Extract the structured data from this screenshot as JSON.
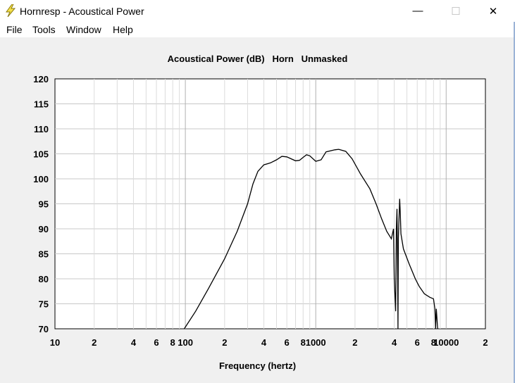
{
  "window": {
    "title": "Hornresp - Acoustical Power",
    "controls": {
      "minimize": "—",
      "maximize": "☐",
      "close": "✕"
    }
  },
  "menu": [
    "File",
    "Tools",
    "Window",
    "Help"
  ],
  "chart_data": {
    "type": "line",
    "title": "Acoustical Power (dB)   Horn   Unmasked",
    "xlabel": "Frequency (hertz)",
    "ylabel": "",
    "x_scale": "log",
    "xlim": [
      10,
      20000
    ],
    "ylim": [
      70,
      120
    ],
    "y_ticks": [
      70,
      75,
      80,
      85,
      90,
      95,
      100,
      105,
      110,
      115,
      120
    ],
    "x_tick_labels": [
      {
        "x": 10,
        "label": "10"
      },
      {
        "x": 20,
        "label": "2"
      },
      {
        "x": 40,
        "label": "4"
      },
      {
        "x": 60,
        "label": "6"
      },
      {
        "x": 80,
        "label": "8"
      },
      {
        "x": 100,
        "label": "100"
      },
      {
        "x": 200,
        "label": "2"
      },
      {
        "x": 400,
        "label": "4"
      },
      {
        "x": 600,
        "label": "6"
      },
      {
        "x": 800,
        "label": "8"
      },
      {
        "x": 1000,
        "label": "1000"
      },
      {
        "x": 2000,
        "label": "2"
      },
      {
        "x": 4000,
        "label": "4"
      },
      {
        "x": 6000,
        "label": "6"
      },
      {
        "x": 8000,
        "label": "8"
      },
      {
        "x": 10000,
        "label": "10000"
      },
      {
        "x": 20000,
        "label": "2"
      }
    ],
    "grid": true,
    "series": [
      {
        "points": [
          [
            98,
            70
          ],
          [
            120,
            73.5
          ],
          [
            150,
            78
          ],
          [
            200,
            84
          ],
          [
            250,
            89.5
          ],
          [
            300,
            95
          ],
          [
            330,
            99
          ],
          [
            360,
            101.5
          ],
          [
            400,
            102.8
          ],
          [
            450,
            103.2
          ],
          [
            500,
            103.8
          ],
          [
            550,
            104.5
          ],
          [
            600,
            104.4
          ],
          [
            700,
            103.6
          ],
          [
            750,
            103.7
          ],
          [
            800,
            104.3
          ],
          [
            850,
            104.8
          ],
          [
            900,
            104.6
          ],
          [
            1000,
            103.5
          ],
          [
            1100,
            103.8
          ],
          [
            1200,
            105.4
          ],
          [
            1400,
            105.8
          ],
          [
            1500,
            105.9
          ],
          [
            1700,
            105.5
          ],
          [
            1900,
            104
          ],
          [
            2200,
            101
          ],
          [
            2600,
            98
          ],
          [
            2900,
            95
          ],
          [
            3200,
            92
          ],
          [
            3500,
            89.5
          ],
          [
            3800,
            88
          ],
          [
            3950,
            90
          ],
          [
            4000,
            80
          ],
          [
            4100,
            73.5
          ],
          [
            4150,
            90
          ],
          [
            4200,
            94
          ],
          [
            4250,
            80
          ],
          [
            4270,
            70
          ],
          [
            4300,
            88
          ],
          [
            4400,
            96
          ],
          [
            4450,
            93
          ],
          [
            4500,
            89
          ],
          [
            4700,
            86
          ],
          [
            5200,
            83
          ],
          [
            5800,
            80
          ],
          [
            6200,
            78.5
          ],
          [
            6800,
            77
          ],
          [
            7500,
            76.3
          ],
          [
            8000,
            76
          ],
          [
            8200,
            74
          ],
          [
            8300,
            70
          ],
          [
            8400,
            74
          ],
          [
            8600,
            70
          ]
        ]
      }
    ]
  }
}
